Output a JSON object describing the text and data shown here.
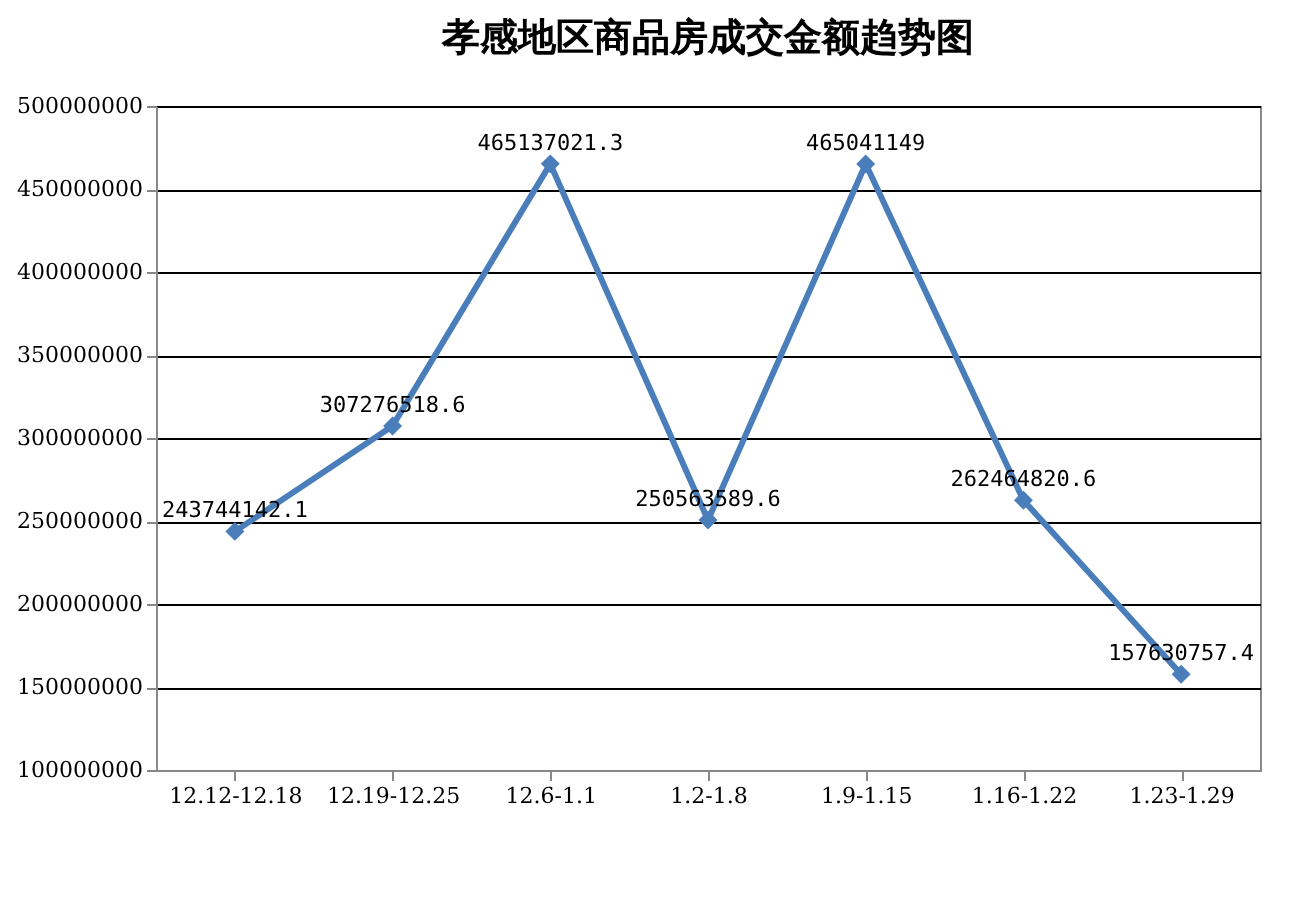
{
  "chart_data": {
    "type": "line",
    "title": "孝感地区商品房成交金额趋势图",
    "categories": [
      "12.12-12.18",
      "12.19-12.25",
      "12.6-1.1",
      "1.2-1.8",
      "1.9-1.15",
      "1.16-1.22",
      "1.23-1.29"
    ],
    "series": [
      {
        "color": "#4a7ebb",
        "values": [
          243744142.1,
          307276518.6,
          465137021.3,
          250563589.6,
          465041149,
          262464820.6,
          157630757.4
        ]
      }
    ],
    "ylim": [
      100000000,
      500000000
    ],
    "yticks": [
      100000000,
      150000000,
      200000000,
      250000000,
      300000000,
      350000000,
      400000000,
      450000000,
      500000000
    ],
    "grid": "y",
    "marker": "diamond",
    "line_style": "solid",
    "data_labels": true,
    "legend": false
  }
}
